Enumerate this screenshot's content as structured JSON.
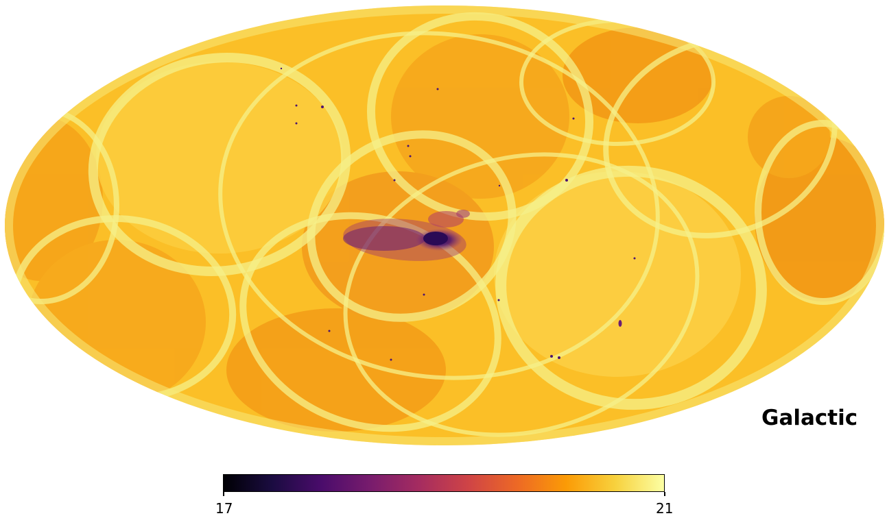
{
  "map": {
    "projection": "mollweide",
    "coordinate_system_label": "Galactic",
    "colormap": "inferno",
    "colormap_stops": [
      "#000004",
      "#1b0c41",
      "#4a0c6b",
      "#781c6d",
      "#a52c60",
      "#cf4446",
      "#ed6925",
      "#fb9b06",
      "#f7d13d",
      "#fcffa4"
    ],
    "background_color": "#fbbf27",
    "scan_stripe_color": "#f6f08a",
    "deep_feature_color": "#3b1160"
  },
  "colorbar": {
    "min_label": "17",
    "max_label": "21",
    "min_value": 17,
    "max_value": 21
  }
}
